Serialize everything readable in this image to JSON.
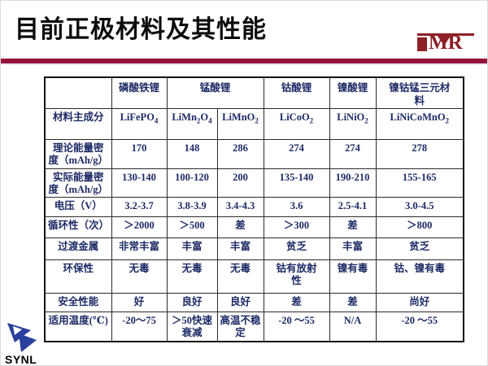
{
  "slide": {
    "title": "目前正极材料及其性能"
  },
  "logos": {
    "imr_text": "MR",
    "synl_label": "SYNL"
  },
  "colors": {
    "accent": "#97123a",
    "logo_maroon": "#8e2127",
    "table_text": "#1d2b66",
    "synl_blue": "#2b3f9e"
  },
  "table": {
    "headers": [
      "磷酸铁锂",
      "锰酸锂",
      "钴酸锂",
      "镍酸锂",
      "镍钴锰三元材料"
    ],
    "rows": [
      {
        "label": "材料主成分",
        "cells": [
          "LiFePO4",
          "LiMn2O4",
          "LiMnO2",
          "LiCoO2",
          "LiNiO2",
          "LiNiCoMnO2"
        ]
      },
      {
        "label": "理论能量密度（mAh/g）",
        "cells": [
          "170",
          "148",
          "286",
          "274",
          "274",
          "278"
        ]
      },
      {
        "label": "实际能量密度（mAh/g）",
        "cells": [
          "130-140",
          "100-120",
          "200",
          "135-140",
          "190-210",
          "155-165"
        ]
      },
      {
        "label": "电压（V）",
        "cells": [
          "3.2-3.7",
          "3.8-3.9",
          "3.4-4.3",
          "3.6",
          "2.5-4.1",
          "3.0-4.5"
        ]
      },
      {
        "label": "循环性（次）",
        "cells": [
          "＞2000",
          "＞500",
          "差",
          "＞300",
          "差",
          "＞800"
        ]
      },
      {
        "label": "过渡金属",
        "cells": [
          "非常丰富",
          "丰富",
          "丰富",
          "贫乏",
          "丰富",
          "贫乏"
        ]
      },
      {
        "label": "环保性",
        "cells": [
          "无毒",
          "无毒",
          "无毒",
          "钴有放射性",
          "镍有毒",
          "钴、镍有毒"
        ]
      },
      {
        "label": "安全性能",
        "cells": [
          "好",
          "良好",
          "良好",
          "差",
          "差",
          "尚好"
        ]
      },
      {
        "label": "适用温度(℃)",
        "cells": [
          "-20～75",
          "＞50快速衰减",
          "高温不稳定",
          "-20 ～55",
          "N/A",
          "-20 ～55"
        ]
      }
    ]
  }
}
